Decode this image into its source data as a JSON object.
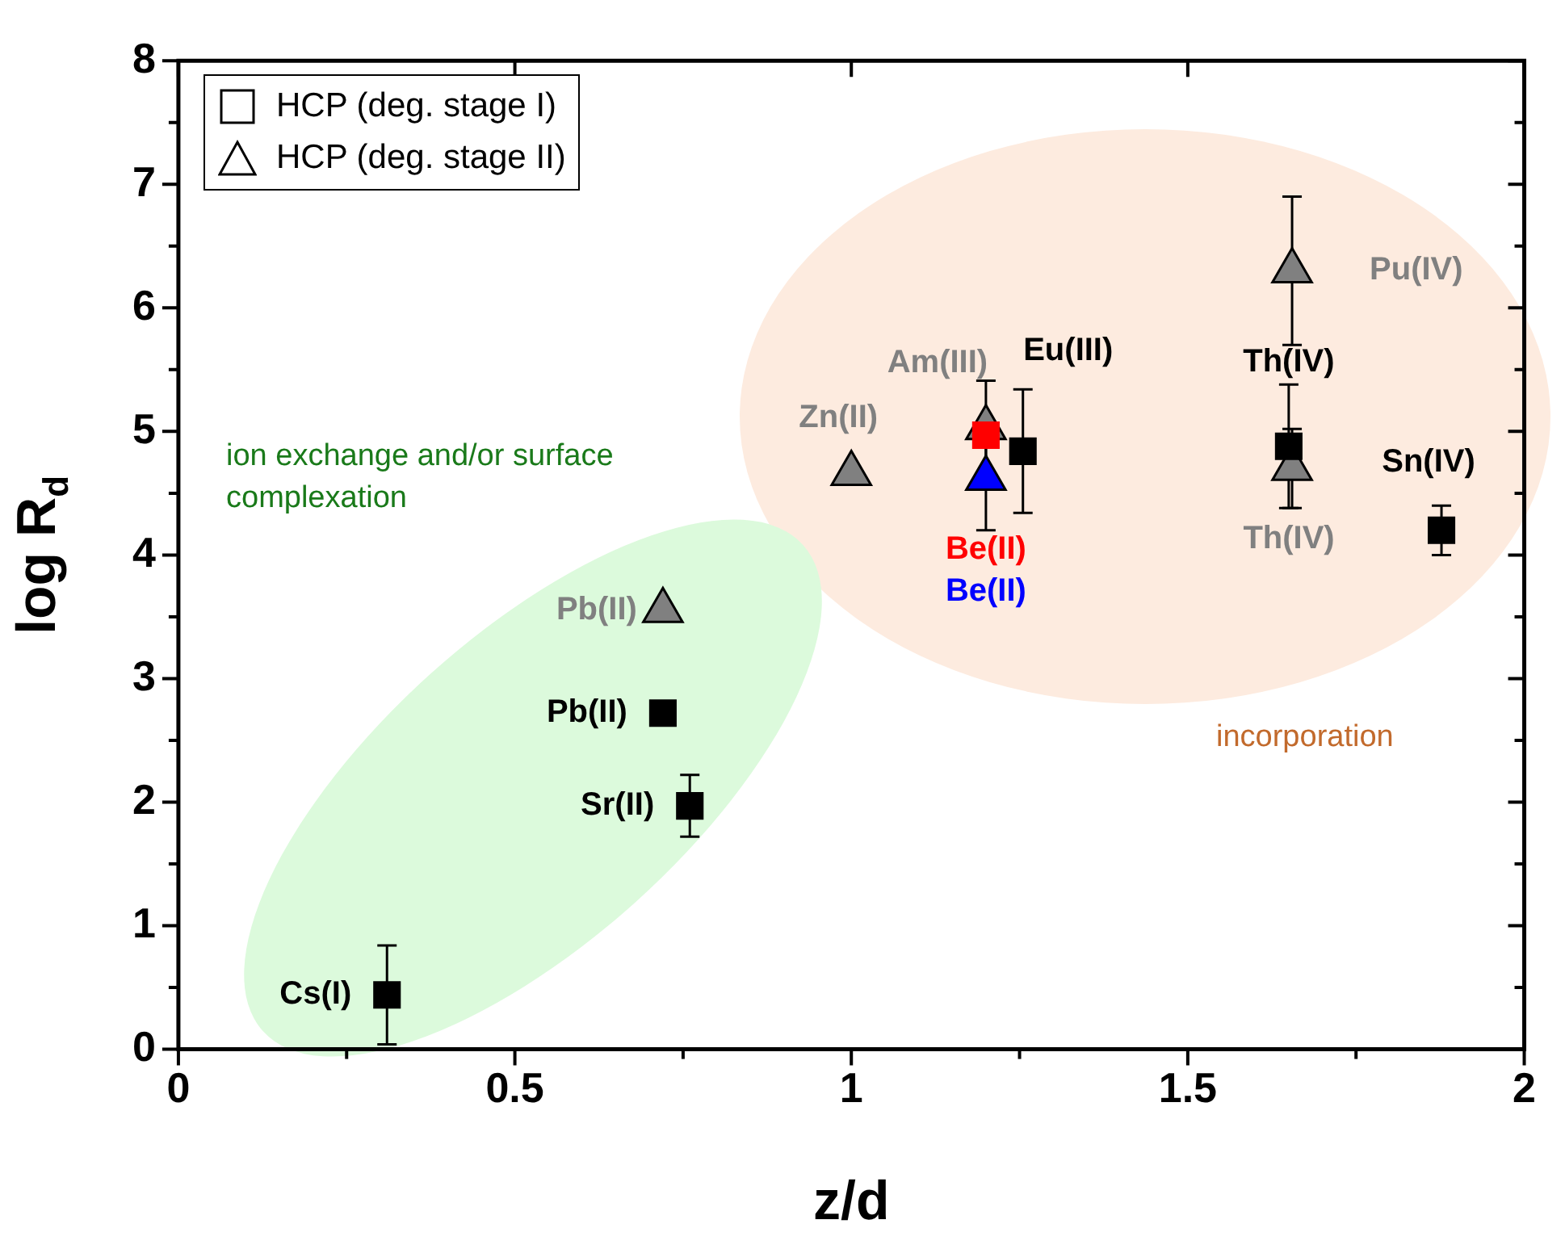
{
  "chart_data": {
    "type": "scatter",
    "xlabel": "z/d",
    "ylabel": "log R$_{d}$",
    "xlim": [
      0,
      2
    ],
    "xticks": [
      0,
      0.5,
      1,
      1.5,
      2
    ],
    "ylim": [
      0,
      8
    ],
    "yticks": [
      0,
      1,
      2,
      3,
      4,
      5,
      6,
      7,
      8
    ],
    "grid": false,
    "legend": "top left",
    "series": [
      {
        "name": "HCP (deg. stage I)",
        "marker": "square",
        "x": [
          0.31,
          0.72,
          0.76,
          1.2,
          1.255,
          1.65,
          1.877
        ],
        "values": [
          0.44,
          2.72,
          1.97,
          4.97,
          4.84,
          4.88,
          4.2
        ],
        "colors": [
          "#000000",
          "#000000",
          "#000000",
          "#ff0000",
          "#000000",
          "#000000",
          "#000000"
        ],
        "errors": [
          0.4,
          null,
          0.25,
          null,
          0.5,
          0.5,
          0.2
        ]
      },
      {
        "name": "HCP (deg. stage II)",
        "marker": "triangle",
        "x": [
          0.72,
          1.0,
          1.2,
          1.2,
          1.655,
          1.655
        ],
        "values": [
          3.55,
          4.66,
          5.03,
          4.62,
          4.7,
          6.3
        ],
        "colors": [
          "#808080",
          "#808080",
          "#808080",
          "#0000ff",
          "#808080",
          "#808080"
        ],
        "errors": [
          null,
          null,
          0.38,
          0.42,
          0.32,
          0.6
        ]
      }
    ],
    "annotations": [
      {
        "text": "Cs(I)",
        "x": 0.31,
        "y": 0.44
      },
      {
        "text": "Pb(II)",
        "x": 0.72,
        "y": 2.72
      },
      {
        "text": "Sr(II)",
        "x": 0.76,
        "y": 1.97
      },
      {
        "text": "Be(II)",
        "x": 1.2,
        "y": 4.97
      },
      {
        "text": "Eu(III)",
        "x": 1.255,
        "y": 4.84
      },
      {
        "text": "Th(IV)",
        "x": 1.65,
        "y": 4.88
      },
      {
        "text": "Sn(IV)",
        "x": 1.877,
        "y": 4.2
      },
      {
        "text": "Pb(II)",
        "x": 0.72,
        "y": 3.55
      },
      {
        "text": "Zn(II)",
        "x": 1.0,
        "y": 4.66
      },
      {
        "text": "Am(III)",
        "x": 1.2,
        "y": 5.03
      },
      {
        "text": "Be(II)",
        "x": 1.2,
        "y": 4.62
      },
      {
        "text": "Th(IV)",
        "x": 1.655,
        "y": 4.7
      },
      {
        "text": "Pu(IV)",
        "x": 1.655,
        "y": 6.3
      },
      "ion exchange and/or surface complexation",
      "incorporation"
    ]
  }
}
